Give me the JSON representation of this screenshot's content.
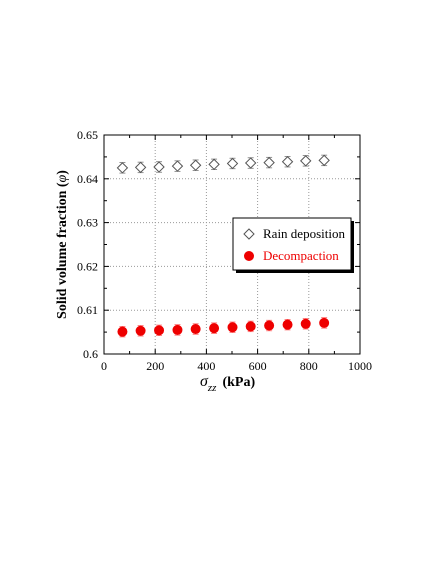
{
  "chart_data": {
    "type": "scatter",
    "xlabel": "σzz (kPa)",
    "ylabel": "Solid volume fraction (φ)",
    "xlabel_parts": {
      "symbol": "σ",
      "subscript": "zz",
      "unit": "(kPa)"
    },
    "ylabel_parts": {
      "text": "Solid volume fraction (",
      "symbol": "φ",
      "close": ")"
    },
    "xlim": [
      0,
      1000
    ],
    "ylim": [
      0.6,
      0.65
    ],
    "xticks": [
      0,
      200,
      400,
      600,
      800,
      1000
    ],
    "yticks": [
      0.6,
      0.61,
      0.62,
      0.63,
      0.64,
      0.65
    ],
    "xtick_labels": [
      "0",
      "200",
      "400",
      "600",
      "800",
      "1000"
    ],
    "ytick_labels": [
      "0.6",
      "0.61",
      "0.62",
      "0.63",
      "0.64",
      "0.65"
    ],
    "grid": true,
    "legend_position": "right",
    "series": [
      {
        "name": "Rain deposition",
        "marker": "open-diamond",
        "color": "#555555",
        "x": [
          72,
          143,
          215,
          287,
          358,
          430,
          502,
          573,
          645,
          717,
          788,
          860
        ],
        "y": [
          0.6425,
          0.6426,
          0.6427,
          0.6429,
          0.6431,
          0.6433,
          0.6435,
          0.6436,
          0.6437,
          0.6439,
          0.6441,
          0.6442
        ],
        "err": [
          0.0012,
          0.0012,
          0.0012,
          0.0012,
          0.0012,
          0.0012,
          0.0012,
          0.0012,
          0.0012,
          0.0012,
          0.0012,
          0.0012
        ]
      },
      {
        "name": "Decompaction",
        "marker": "filled-circle",
        "color": "#ee0000",
        "x": [
          72,
          143,
          215,
          287,
          358,
          430,
          502,
          573,
          645,
          717,
          788,
          860
        ],
        "y": [
          0.6051,
          0.6053,
          0.6054,
          0.6055,
          0.6057,
          0.6059,
          0.6061,
          0.6063,
          0.6065,
          0.6067,
          0.6069,
          0.6071
        ],
        "err": [
          0.0012,
          0.0012,
          0.0012,
          0.0012,
          0.0012,
          0.0012,
          0.0012,
          0.0012,
          0.0012,
          0.0012,
          0.0012,
          0.0012
        ]
      }
    ]
  }
}
